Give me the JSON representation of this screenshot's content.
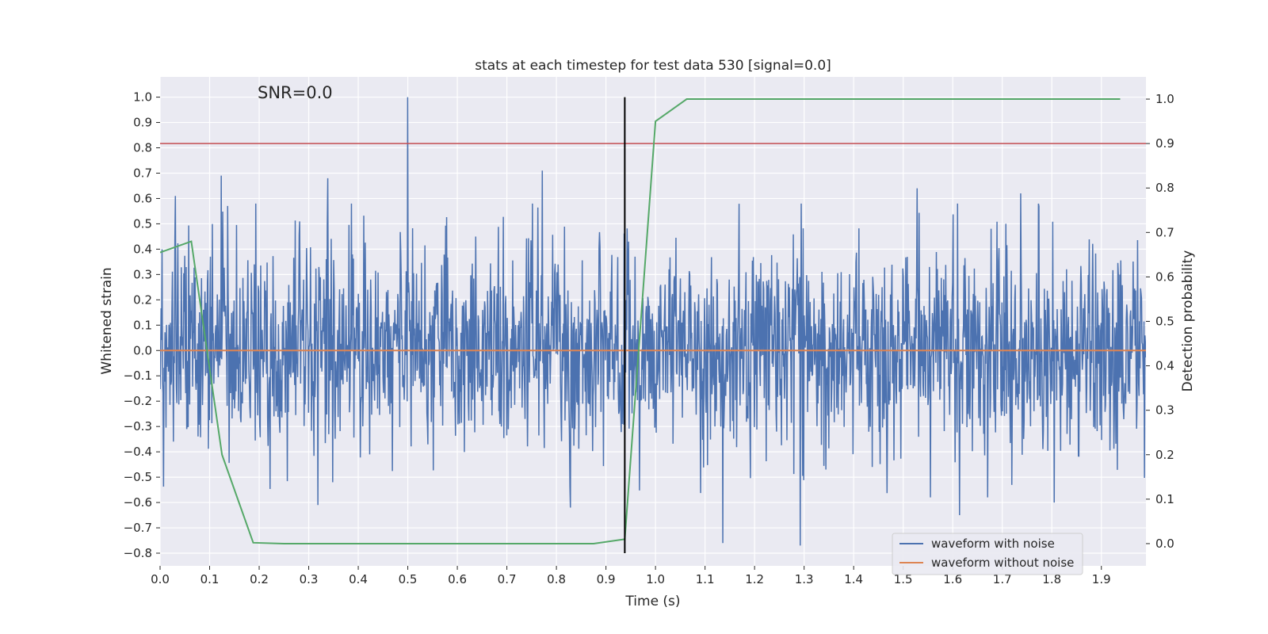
{
  "chart_data": {
    "type": "line",
    "title": "stats at each timestep for test data 530 [signal=0.0]",
    "xlabel": "Time (s)",
    "ylabel": "Whitened strain",
    "y2label": "Detection probability",
    "annotation": "SNR=0.0",
    "xlim": [
      0.0,
      1.99
    ],
    "ylim": [
      -0.85,
      1.08
    ],
    "y2lim": [
      -0.05,
      1.05
    ],
    "xticks": [
      "0.0",
      "0.1",
      "0.2",
      "0.3",
      "0.4",
      "0.5",
      "0.6",
      "0.7",
      "0.8",
      "0.9",
      "1.0",
      "1.1",
      "1.2",
      "1.3",
      "1.4",
      "1.5",
      "1.6",
      "1.7",
      "1.8",
      "1.9"
    ],
    "yticks": [
      "1.0",
      "0.9",
      "0.8",
      "0.7",
      "0.6",
      "0.5",
      "0.4",
      "0.3",
      "0.2",
      "0.1",
      "0.0",
      "−0.1",
      "−0.2",
      "−0.3",
      "−0.4",
      "−0.5",
      "−0.6",
      "−0.7",
      "−0.8"
    ],
    "y2ticks": [
      "1.0",
      "0.9",
      "0.8",
      "0.7",
      "0.6",
      "0.5",
      "0.4",
      "0.3",
      "0.2",
      "0.1",
      "0.0"
    ],
    "grid": true,
    "legend_position": "bottom-right",
    "colors": {
      "noise": "#4c72b0",
      "clean": "#dd8452",
      "probability": "#55a868",
      "threshold": "#c44e52",
      "marker": "#000000",
      "background": "#eaeaf2",
      "grid": "#ffffff"
    },
    "series": [
      {
        "name": "waveform with noise",
        "axis": "left",
        "sample_count": 2000,
        "mean": 0.0,
        "std": 0.2,
        "peaks": [
          {
            "x": 0.5,
            "y": 1.0
          },
          {
            "x": 0.123,
            "y": 0.69
          },
          {
            "x": 0.338,
            "y": 0.68
          },
          {
            "x": 0.772,
            "y": 0.71
          },
          {
            "x": 1.292,
            "y": -0.77
          },
          {
            "x": 1.136,
            "y": -0.76
          },
          {
            "x": 0.319,
            "y": -0.61
          },
          {
            "x": 0.828,
            "y": -0.62
          },
          {
            "x": 1.614,
            "y": -0.65
          },
          {
            "x": 1.805,
            "y": -0.6
          },
          {
            "x": 0.031,
            "y": 0.61
          },
          {
            "x": 1.528,
            "y": 0.64
          },
          {
            "x": 1.737,
            "y": 0.62
          },
          {
            "x": 0.054,
            "y": -0.31
          }
        ]
      },
      {
        "name": "waveform without noise",
        "axis": "left",
        "constant": 0.0
      },
      {
        "name": "detection probability",
        "axis": "right",
        "x": [
          0.0,
          0.063,
          0.125,
          0.188,
          0.25,
          0.313,
          0.375,
          0.438,
          0.5,
          0.563,
          0.625,
          0.688,
          0.75,
          0.813,
          0.875,
          0.938,
          1.0,
          1.063,
          1.125,
          1.188,
          1.25,
          1.313,
          1.375,
          1.438,
          1.5,
          1.563,
          1.625,
          1.688,
          1.75,
          1.813,
          1.875,
          1.938
        ],
        "values": [
          0.655,
          0.68,
          0.2,
          0.002,
          0.0,
          0.0,
          0.0,
          0.0,
          0.0,
          0.0,
          0.0,
          0.0,
          0.0,
          0.0,
          0.0,
          0.01,
          0.95,
          1.0,
          1.0,
          1.0,
          1.0,
          1.0,
          1.0,
          1.0,
          1.0,
          1.0,
          1.0,
          1.0,
          1.0,
          1.0,
          1.0,
          1.0
        ]
      }
    ],
    "threshold": {
      "axis": "right",
      "value": 0.9
    },
    "marker_line": {
      "x": 0.938,
      "y_from": -0.8,
      "y_to": 1.0
    },
    "legend": [
      "waveform with noise",
      "waveform without noise"
    ]
  }
}
